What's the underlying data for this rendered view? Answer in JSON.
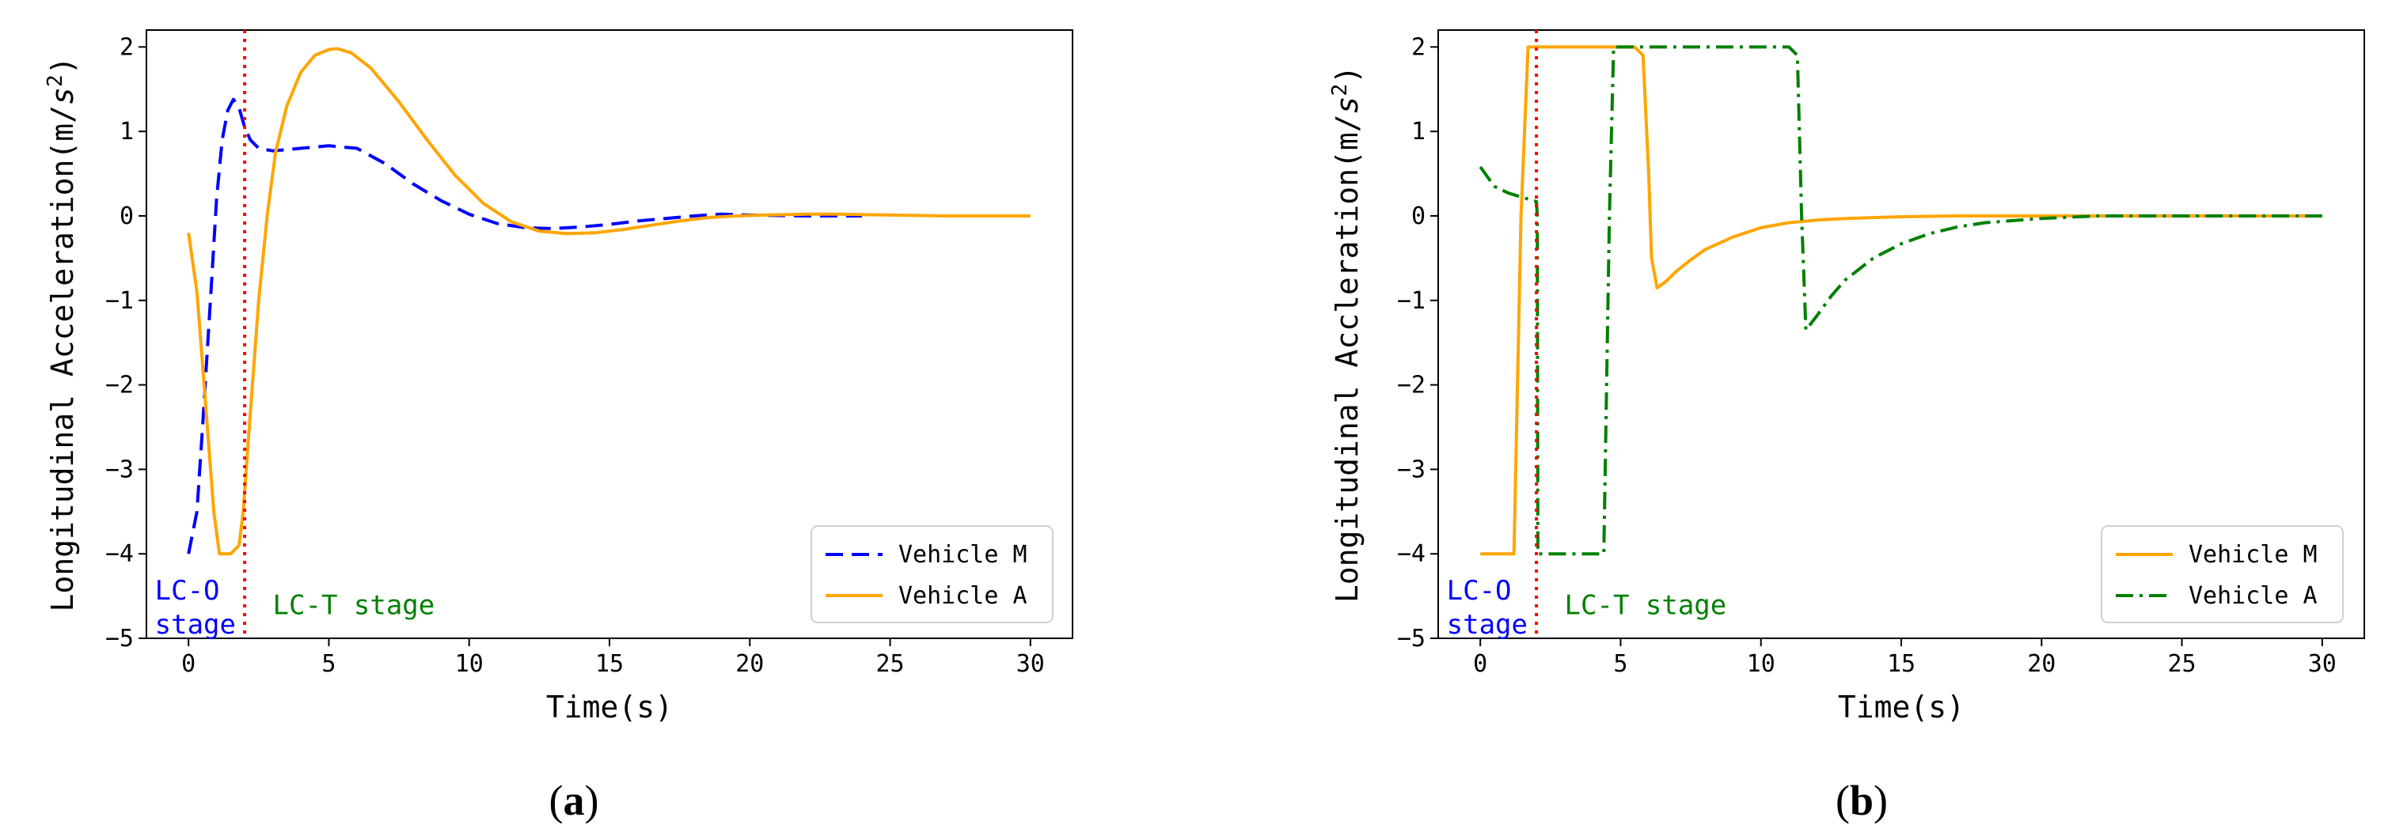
{
  "chart_data": [
    {
      "type": "line",
      "panel": "(a)",
      "caption_open": "(",
      "caption_letter": "a",
      "caption_close": ")",
      "xlabel": "Time(s)",
      "ylabel": "Longitudinal Acceleration(m/s²)",
      "ylabel_main": "Longitudinal Acceleration(m/",
      "ylabel_unit": "s",
      "ylabel_exp": "2",
      "ylabel_end": ")",
      "xlim": [
        -1.5,
        31.5
      ],
      "ylim": [
        -5,
        2.2
      ],
      "xticks": [
        0,
        5,
        10,
        15,
        20,
        25,
        30
      ],
      "yticks": [
        -5,
        -4,
        -3,
        -2,
        -1,
        0,
        1,
        2
      ],
      "grid": false,
      "legend_position": "lower-right",
      "vline": {
        "x": 2,
        "color": "#ff0000"
      },
      "annotations": [
        {
          "text": "LC-O",
          "x": -1.2,
          "y": -4.43,
          "color": "#0000ff"
        },
        {
          "text": "stage",
          "x": -1.2,
          "y": -4.83,
          "color": "#0000ff"
        },
        {
          "text": "LC-T stage",
          "x": 3,
          "y": -4.6,
          "color": "#008000"
        }
      ],
      "series": [
        {
          "name": "Vehicle M",
          "color": "#0000ff",
          "style": "dashed",
          "x": [
            0,
            0.3,
            0.5,
            0.8,
            1.0,
            1.2,
            1.4,
            1.6,
            1.8,
            2.0,
            2.2,
            2.5,
            3,
            4,
            5,
            6,
            7,
            8,
            9,
            10,
            11,
            12,
            13,
            14,
            15,
            16,
            17,
            18,
            19,
            20,
            22,
            24
          ],
          "y": [
            -4.0,
            -3.5,
            -2.5,
            -0.9,
            0.2,
            0.9,
            1.25,
            1.38,
            1.28,
            1.05,
            0.9,
            0.8,
            0.77,
            0.8,
            0.83,
            0.8,
            0.62,
            0.38,
            0.18,
            0.02,
            -0.09,
            -0.14,
            -0.15,
            -0.13,
            -0.1,
            -0.06,
            -0.03,
            0.0,
            0.02,
            0.01,
            0.0,
            0.0
          ]
        },
        {
          "name": "Vehicle A",
          "color": "#ffa500",
          "style": "solid",
          "x": [
            0,
            0.3,
            0.6,
            0.9,
            1.1,
            1.5,
            1.8,
            1.95,
            2.1,
            2.3,
            2.5,
            2.8,
            3.1,
            3.5,
            4,
            4.5,
            5,
            5.3,
            5.8,
            6.5,
            7.5,
            8.5,
            9.5,
            10.5,
            11.5,
            12.5,
            13.5,
            14.5,
            15.5,
            16.5,
            17.5,
            18.5,
            19.5,
            20.5,
            22,
            23,
            25,
            27,
            30
          ],
          "y": [
            -0.2,
            -0.9,
            -2.2,
            -3.5,
            -4.0,
            -4.0,
            -3.9,
            -3.5,
            -2.8,
            -1.9,
            -1.0,
            0.0,
            0.75,
            1.3,
            1.7,
            1.9,
            1.97,
            1.98,
            1.93,
            1.75,
            1.35,
            0.9,
            0.48,
            0.15,
            -0.07,
            -0.18,
            -0.21,
            -0.2,
            -0.16,
            -0.11,
            -0.06,
            -0.02,
            0.0,
            0.01,
            0.02,
            0.02,
            0.01,
            0.0,
            0.0
          ]
        }
      ]
    },
    {
      "type": "line",
      "panel": "(b)",
      "caption_open": "(",
      "caption_letter": "b",
      "caption_close": ")",
      "xlabel": "Time(s)",
      "ylabel": "Longitudinal Accleration(m/s²)",
      "ylabel_main": "Longitudinal Accleration(m/",
      "ylabel_unit": "s",
      "ylabel_exp": "2",
      "ylabel_end": ")",
      "xlim": [
        -1.5,
        31.5
      ],
      "ylim": [
        -5,
        2.2
      ],
      "xticks": [
        0,
        5,
        10,
        15,
        20,
        25,
        30
      ],
      "yticks": [
        -5,
        -4,
        -3,
        -2,
        -1,
        0,
        1,
        2
      ],
      "grid": false,
      "legend_position": "lower-right",
      "vline": {
        "x": 2,
        "color": "#ff0000"
      },
      "annotations": [
        {
          "text": "LC-O",
          "x": -1.2,
          "y": -4.43,
          "color": "#0000ff"
        },
        {
          "text": "stage",
          "x": -1.2,
          "y": -4.83,
          "color": "#0000ff"
        },
        {
          "text": "LC-T stage",
          "x": 3,
          "y": -4.6,
          "color": "#008000"
        }
      ],
      "series": [
        {
          "name": "Vehicle M",
          "color": "#ffa500",
          "style": "solid",
          "x": [
            0,
            1.2,
            1.45,
            1.7,
            5.5,
            5.8,
            6.0,
            6.1,
            6.3,
            6.6,
            7,
            7.5,
            8,
            9,
            10,
            11,
            12,
            13,
            14,
            15,
            17,
            20,
            25,
            30
          ],
          "y": [
            -4.0,
            -4.0,
            0.0,
            2.0,
            2.0,
            1.9,
            0.5,
            -0.5,
            -0.85,
            -0.78,
            -0.65,
            -0.52,
            -0.4,
            -0.25,
            -0.14,
            -0.08,
            -0.05,
            -0.03,
            -0.02,
            -0.01,
            0.0,
            0.0,
            0.0,
            0.0
          ]
        },
        {
          "name": "Vehicle A",
          "color": "#008000",
          "style": "dashdot",
          "x": [
            0,
            0.5,
            1.0,
            1.5,
            2.0,
            2.03,
            2.05,
            4.4,
            4.6,
            4.75,
            11.0,
            11.3,
            11.45,
            11.6,
            12,
            12.5,
            13,
            14,
            15,
            16,
            17,
            18,
            20,
            22,
            25,
            30
          ],
          "y": [
            0.58,
            0.35,
            0.27,
            0.22,
            0.17,
            0.0,
            -4.0,
            -4.0,
            0.0,
            2.0,
            2.0,
            1.9,
            0.0,
            -1.35,
            -1.18,
            -0.95,
            -0.76,
            -0.5,
            -0.33,
            -0.21,
            -0.13,
            -0.08,
            -0.03,
            0.0,
            0.0,
            0.0
          ]
        }
      ]
    }
  ]
}
